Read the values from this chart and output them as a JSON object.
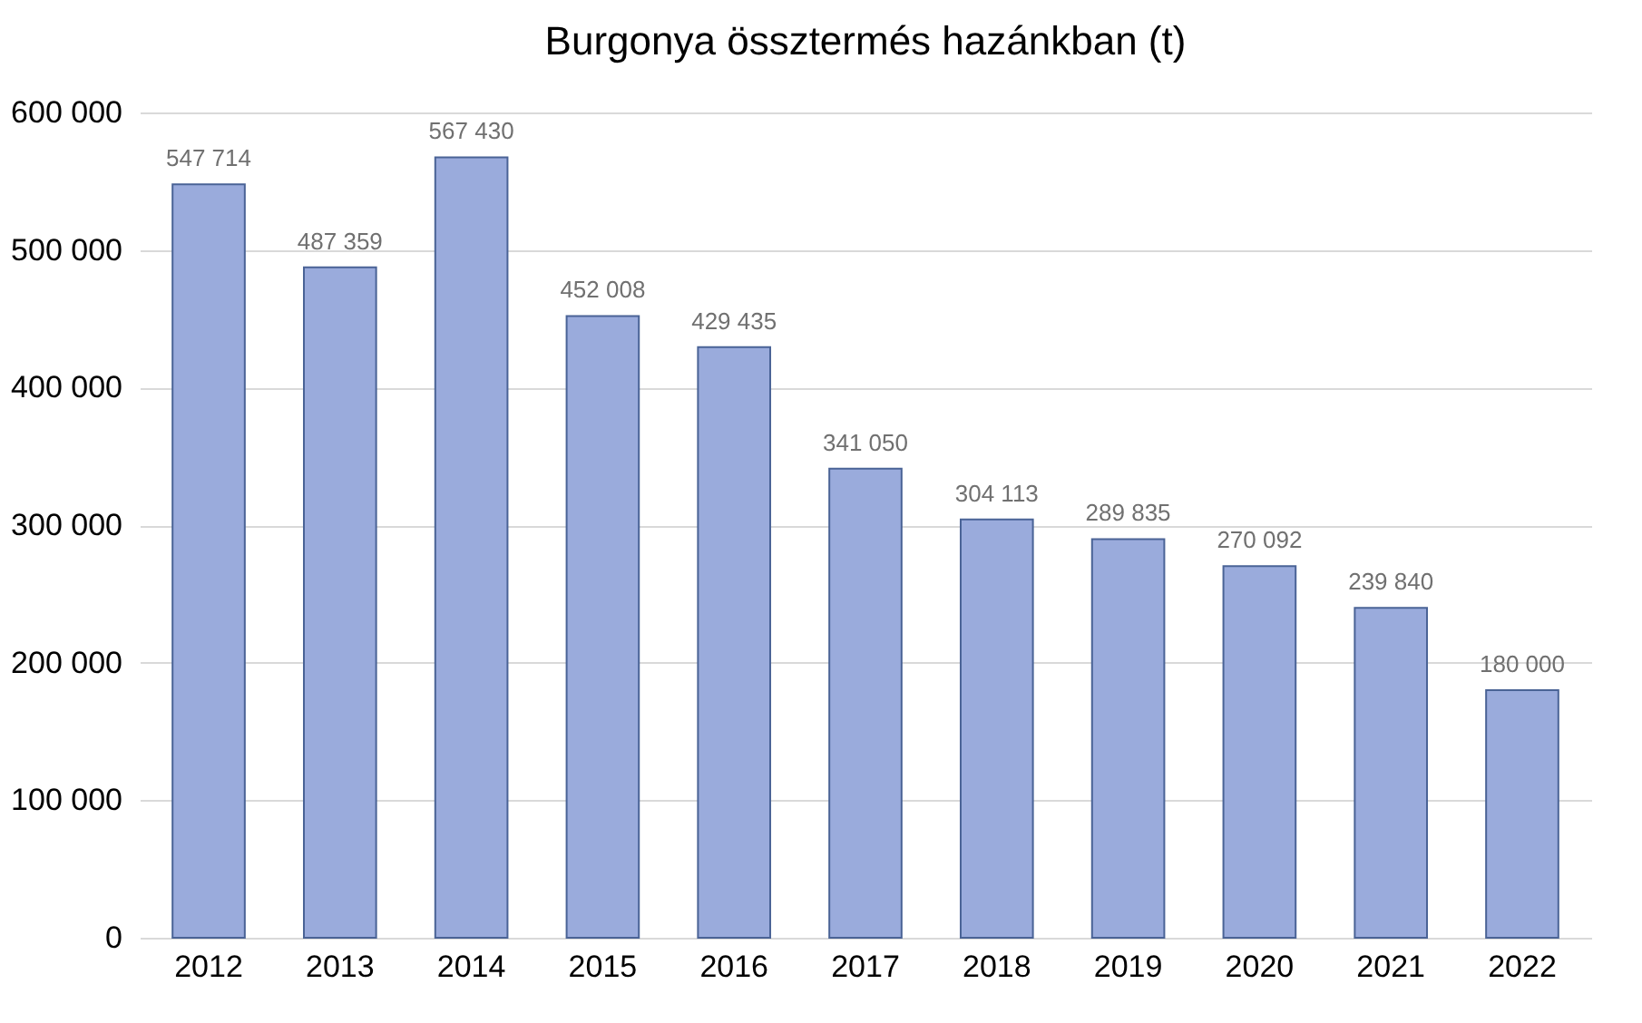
{
  "chart_data": {
    "type": "bar",
    "title": "Burgonya össztermés hazánkban (t)",
    "categories": [
      "2012",
      "2013",
      "2014",
      "2015",
      "2016",
      "2017",
      "2018",
      "2019",
      "2020",
      "2021",
      "2022"
    ],
    "values": [
      547714,
      487359,
      567430,
      452008,
      429435,
      341050,
      304113,
      289835,
      270092,
      239840,
      180000
    ],
    "value_labels": [
      "547 714",
      "487 359",
      "567 430",
      "452 008",
      "429 435",
      "341 050",
      "304 113",
      "289 835",
      "270 092",
      "239 840",
      "180 000"
    ],
    "color": "#9aabdc",
    "ylim": [
      0,
      600000
    ],
    "yticks": [
      {
        "value": 0,
        "label": "0"
      },
      {
        "value": 100000,
        "label": "100 000"
      },
      {
        "value": 200000,
        "label": "200 000"
      },
      {
        "value": 300000,
        "label": "300 000"
      },
      {
        "value": 400000,
        "label": "400 000"
      },
      {
        "value": 500000,
        "label": "500 000"
      },
      {
        "value": 600000,
        "label": "600 000"
      }
    ],
    "grid": "y"
  }
}
